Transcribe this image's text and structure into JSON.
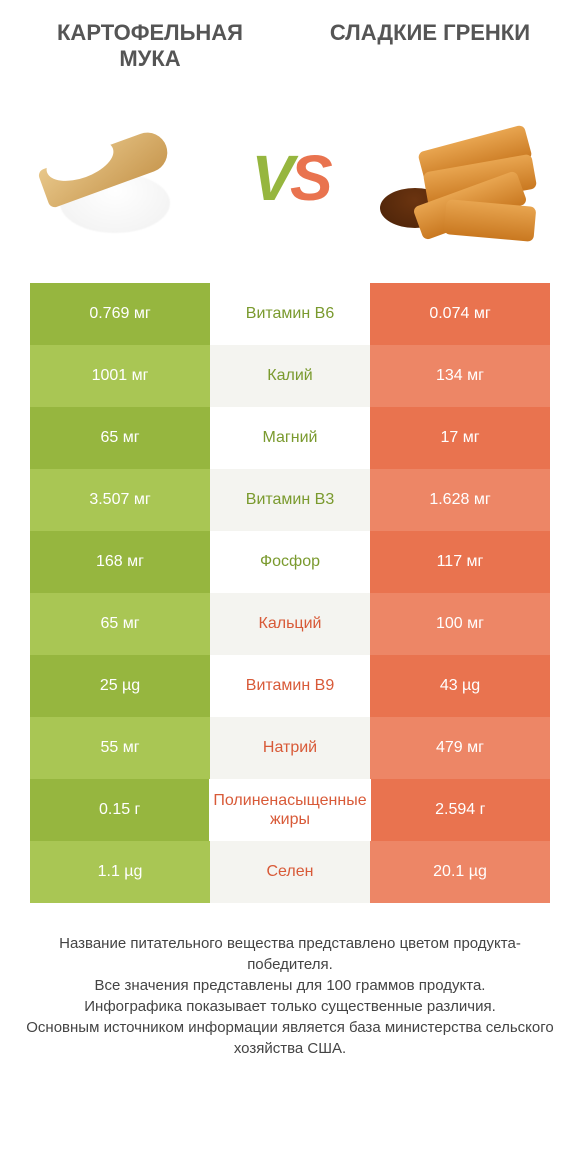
{
  "titles": {
    "left": "КАРТОФЕЛЬНАЯ МУКА",
    "right": "СЛАДКИЕ ГРЕНКИ"
  },
  "vs": {
    "v": "V",
    "s": "S"
  },
  "colors": {
    "green_dark": "#96b63f",
    "green_light": "#a9c654",
    "orange_dark": "#e9734f",
    "orange_light": "#ed8666",
    "mid_bg_a": "#ffffff",
    "mid_bg_b": "#f4f4f0",
    "text_green": "#7a9a2e",
    "text_orange": "#d85a38",
    "title_color": "#555555",
    "footer_color": "#444444"
  },
  "rows": [
    {
      "left": "0.769 мг",
      "mid": "Витамин B6",
      "right": "0.074 мг",
      "winner": "left"
    },
    {
      "left": "1001 мг",
      "mid": "Калий",
      "right": "134 мг",
      "winner": "left"
    },
    {
      "left": "65 мг",
      "mid": "Магний",
      "right": "17 мг",
      "winner": "left"
    },
    {
      "left": "3.507 мг",
      "mid": "Витамин B3",
      "right": "1.628 мг",
      "winner": "left"
    },
    {
      "left": "168 мг",
      "mid": "Фосфор",
      "right": "117 мг",
      "winner": "left"
    },
    {
      "left": "65 мг",
      "mid": "Кальций",
      "right": "100 мг",
      "winner": "right"
    },
    {
      "left": "25 µg",
      "mid": "Витамин B9",
      "right": "43 µg",
      "winner": "right"
    },
    {
      "left": "55 мг",
      "mid": "Натрий",
      "right": "479 мг",
      "winner": "right"
    },
    {
      "left": "0.15 г",
      "mid": "Полиненасыщенные жиры",
      "right": "2.594 г",
      "winner": "right"
    },
    {
      "left": "1.1 µg",
      "mid": "Селен",
      "right": "20.1 µg",
      "winner": "right"
    }
  ],
  "footer": {
    "l1": "Название питательного вещества представлено цветом продукта-победителя.",
    "l2": "Все значения представлены для 100 граммов продукта.",
    "l3": "Инфографика показывает только существенные различия.",
    "l4": "Основным источником информации является база министерства сельского хозяйства США."
  }
}
